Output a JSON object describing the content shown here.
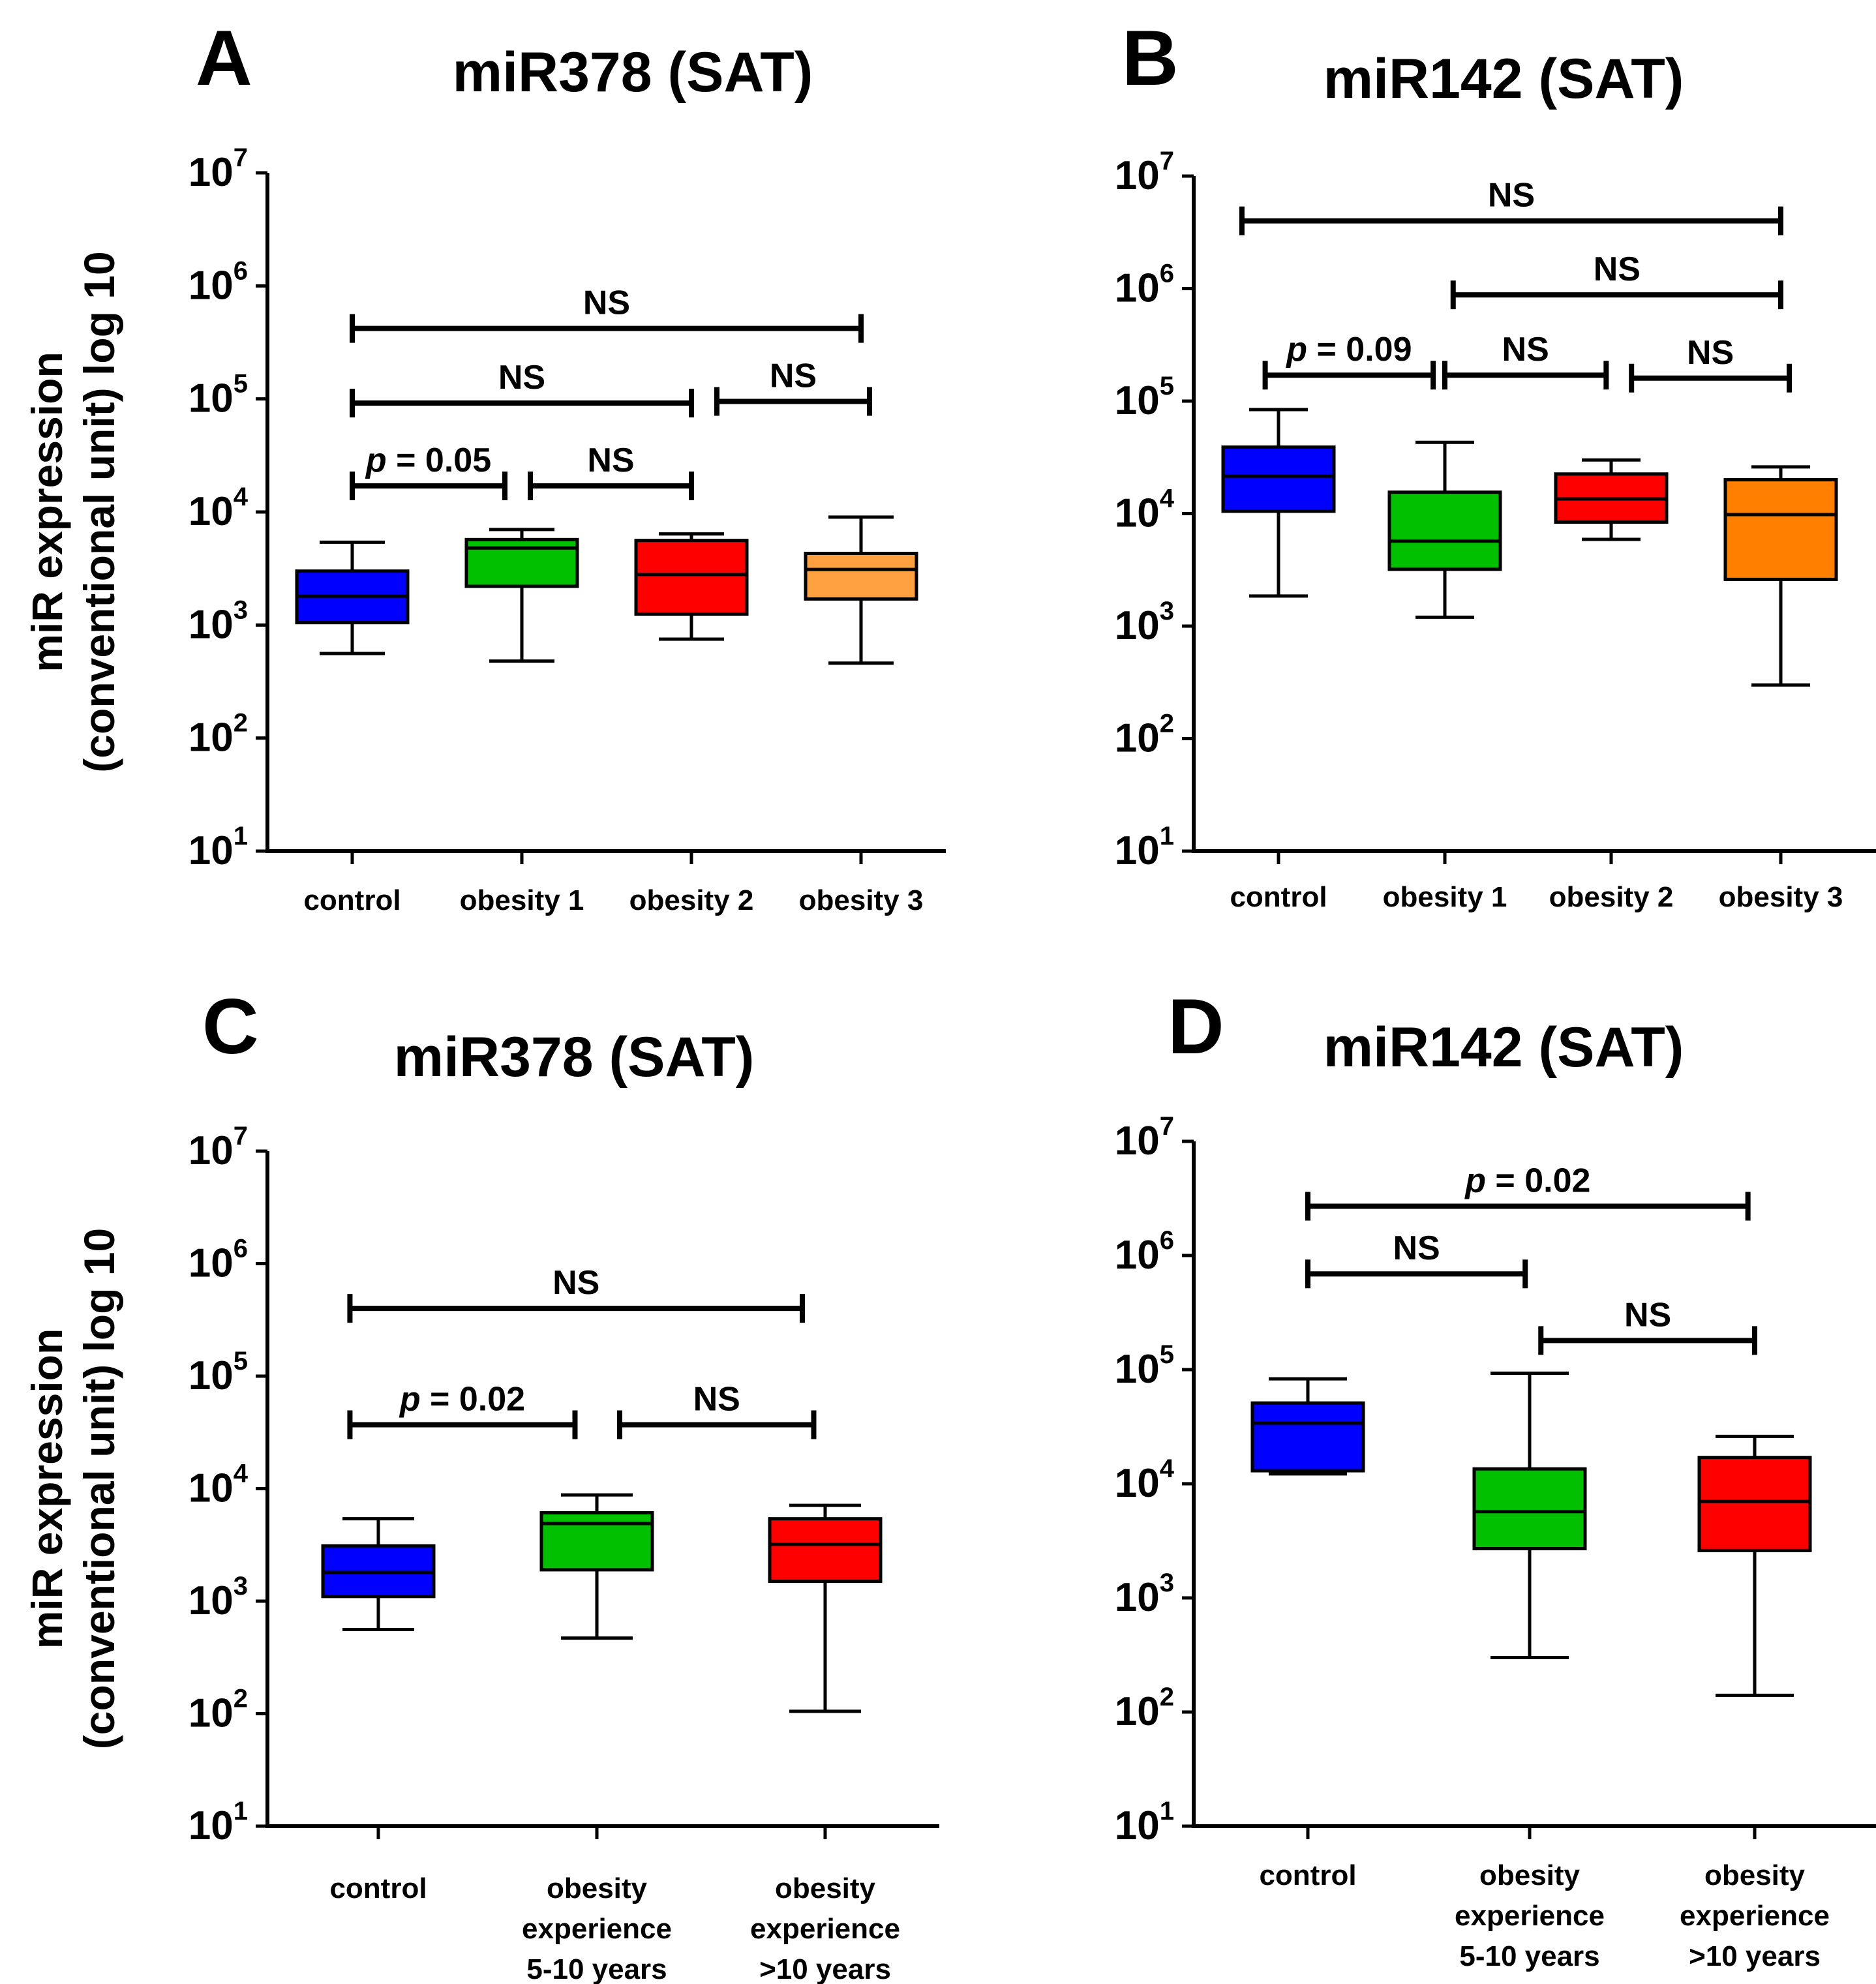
{
  "y_axis_label_lines": [
    "miR expression",
    "(conventional unit) log 10"
  ],
  "chart_data": [
    {
      "panel": "A",
      "type": "box",
      "title": "miR378 (SAT)",
      "y_scale": "log10",
      "ylim": [
        10,
        10000000
      ],
      "y_ticks": [
        {
          "base": "10",
          "exp": "1"
        },
        {
          "base": "10",
          "exp": "2"
        },
        {
          "base": "10",
          "exp": "3"
        },
        {
          "base": "10",
          "exp": "4"
        },
        {
          "base": "10",
          "exp": "5"
        },
        {
          "base": "10",
          "exp": "6"
        },
        {
          "base": "10",
          "exp": "7"
        }
      ],
      "categories": [
        [
          "control"
        ],
        [
          "obesity 1"
        ],
        [
          "obesity 2"
        ],
        [
          "obesity 3"
        ]
      ],
      "boxes": [
        {
          "min": 560,
          "q1": 1050,
          "median": 1800,
          "q3": 3000,
          "max": 5400,
          "color": "#0000ff"
        },
        {
          "min": 480,
          "q1": 2200,
          "median": 4800,
          "q3": 5700,
          "max": 7000,
          "color": "#00c000"
        },
        {
          "min": 750,
          "q1": 1250,
          "median": 2800,
          "q3": 5600,
          "max": 6400,
          "color": "#ff0000"
        },
        {
          "min": 460,
          "q1": 1700,
          "median": 3100,
          "q3": 4300,
          "max": 9000,
          "color": "#ffa040"
        }
      ],
      "comparisons": [
        {
          "from": 0,
          "to": 3,
          "y": 420000,
          "prefix": "",
          "label": "NS"
        },
        {
          "from": 0,
          "to": 2,
          "y": 92000,
          "prefix": "",
          "label": "NS"
        },
        {
          "from": 2.15,
          "to": 3.05,
          "y": 95000,
          "prefix": "",
          "label": "NS"
        },
        {
          "from": 0,
          "to": 0.9,
          "y": 17000,
          "prefix": "p",
          "label": " = 0.05"
        },
        {
          "from": 1.05,
          "to": 2,
          "y": 17000,
          "prefix": "",
          "label": "NS"
        }
      ]
    },
    {
      "panel": "B",
      "type": "box",
      "title": "miR142 (SAT)",
      "y_scale": "log10",
      "ylim": [
        10,
        10000000
      ],
      "y_ticks": [
        {
          "base": "10",
          "exp": "1"
        },
        {
          "base": "10",
          "exp": "2"
        },
        {
          "base": "10",
          "exp": "3"
        },
        {
          "base": "10",
          "exp": "4"
        },
        {
          "base": "10",
          "exp": "5"
        },
        {
          "base": "10",
          "exp": "6"
        },
        {
          "base": "10",
          "exp": "7"
        }
      ],
      "categories": [
        [
          "control"
        ],
        [
          "obesity 1"
        ],
        [
          "obesity 2"
        ],
        [
          "obesity 3"
        ]
      ],
      "boxes": [
        {
          "min": 1850,
          "q1": 10500,
          "median": 21500,
          "q3": 39000,
          "max": 84000,
          "color": "#0000ff"
        },
        {
          "min": 1200,
          "q1": 3200,
          "median": 5700,
          "q3": 15500,
          "max": 43000,
          "color": "#00c000"
        },
        {
          "min": 5900,
          "q1": 8400,
          "median": 13500,
          "q3": 22500,
          "max": 30000,
          "color": "#ff0000"
        },
        {
          "min": 300,
          "q1": 2600,
          "median": 9800,
          "q3": 20000,
          "max": 26000,
          "color": "#ff8000"
        }
      ],
      "comparisons": [
        {
          "from": -0.22,
          "to": 3,
          "y": 4000000,
          "prefix": "",
          "label": "NS"
        },
        {
          "from": 1.05,
          "to": 3,
          "y": 880000,
          "prefix": "",
          "label": "NS"
        },
        {
          "from": -0.08,
          "to": 0.93,
          "y": 170000,
          "prefix": "p",
          "label": " = 0.09"
        },
        {
          "from": 1,
          "to": 1.97,
          "y": 170000,
          "prefix": "",
          "label": "NS"
        },
        {
          "from": 2.12,
          "to": 3.05,
          "y": 160000,
          "prefix": "",
          "label": "NS"
        }
      ]
    },
    {
      "panel": "C",
      "type": "box",
      "title": "miR378 (SAT)",
      "y_scale": "log10",
      "ylim": [
        10,
        10000000
      ],
      "y_ticks": [
        {
          "base": "10",
          "exp": "1"
        },
        {
          "base": "10",
          "exp": "2"
        },
        {
          "base": "10",
          "exp": "3"
        },
        {
          "base": "10",
          "exp": "4"
        },
        {
          "base": "10",
          "exp": "5"
        },
        {
          "base": "10",
          "exp": "6"
        },
        {
          "base": "10",
          "exp": "7"
        }
      ],
      "categories": [
        [
          "control"
        ],
        [
          "obesity",
          "experience",
          "5-10 years"
        ],
        [
          "obesity",
          "experience",
          ">10 years"
        ]
      ],
      "boxes": [
        {
          "min": 560,
          "q1": 1100,
          "median": 1800,
          "q3": 3100,
          "max": 5400,
          "color": "#0000ff"
        },
        {
          "min": 470,
          "q1": 1900,
          "median": 4900,
          "q3": 6100,
          "max": 8800,
          "color": "#00c000"
        },
        {
          "min": 105,
          "q1": 1500,
          "median": 3200,
          "q3": 5400,
          "max": 7100,
          "color": "#ff0000"
        }
      ],
      "comparisons": [
        {
          "from": -0.13,
          "to": 1.9,
          "y": 400000,
          "prefix": "",
          "label": "NS"
        },
        {
          "from": -0.13,
          "to": 0.9,
          "y": 37000,
          "prefix": "p",
          "label": " = 0.02"
        },
        {
          "from": 1.1,
          "to": 1.95,
          "y": 37000,
          "prefix": "",
          "label": "NS"
        }
      ]
    },
    {
      "panel": "D",
      "type": "box",
      "title": "miR142 (SAT)",
      "y_scale": "log10",
      "ylim": [
        10,
        10000000
      ],
      "y_ticks": [
        {
          "base": "10",
          "exp": "1"
        },
        {
          "base": "10",
          "exp": "2"
        },
        {
          "base": "10",
          "exp": "3"
        },
        {
          "base": "10",
          "exp": "4"
        },
        {
          "base": "10",
          "exp": "5"
        },
        {
          "base": "10",
          "exp": "6"
        },
        {
          "base": "10",
          "exp": "7"
        }
      ],
      "categories": [
        [
          "control"
        ],
        [
          "obesity",
          "experience",
          "5-10 years"
        ],
        [
          "obesity",
          "experience",
          ">10 years"
        ]
      ],
      "boxes": [
        {
          "min": 12200,
          "q1": 13000,
          "median": 34000,
          "q3": 51000,
          "max": 83000,
          "color": "#0000ff"
        },
        {
          "min": 300,
          "q1": 2700,
          "median": 5700,
          "q3": 13500,
          "max": 93000,
          "color": "#00c000"
        },
        {
          "min": 140,
          "q1": 2600,
          "median": 7000,
          "q3": 17000,
          "max": 26000,
          "color": "#ff0000"
        }
      ],
      "comparisons": [
        {
          "from": 0,
          "to": 1.97,
          "y": 2700000,
          "prefix": "p",
          "label": " = 0.02"
        },
        {
          "from": 0,
          "to": 0.98,
          "y": 690000,
          "prefix": "",
          "label": "NS"
        },
        {
          "from": 1.05,
          "to": 2,
          "y": 180000,
          "prefix": "",
          "label": "NS"
        }
      ]
    }
  ]
}
